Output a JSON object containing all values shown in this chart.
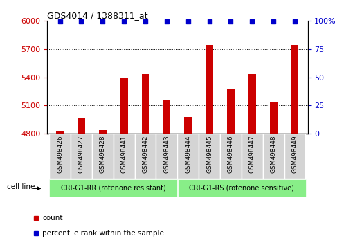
{
  "title": "GDS4014 / 1388311_at",
  "samples": [
    "GSM498426",
    "GSM498427",
    "GSM498428",
    "GSM498441",
    "GSM498442",
    "GSM498443",
    "GSM498444",
    "GSM498445",
    "GSM498446",
    "GSM498447",
    "GSM498448",
    "GSM498449"
  ],
  "counts": [
    4830,
    4970,
    4840,
    5400,
    5430,
    5160,
    4975,
    5740,
    5280,
    5430,
    5130,
    5740
  ],
  "percentile_ranks": [
    100,
    100,
    100,
    100,
    100,
    100,
    100,
    100,
    100,
    100,
    100,
    100
  ],
  "bar_color": "#cc0000",
  "dot_color": "#0000cc",
  "ylim_left": [
    4800,
    6000
  ],
  "ylim_right": [
    0,
    100
  ],
  "yticks_left": [
    4800,
    5100,
    5400,
    5700,
    6000
  ],
  "yticks_right": [
    0,
    25,
    50,
    75,
    100
  ],
  "group1_label": "CRI-G1-RR (rotenone resistant)",
  "group2_label": "CRI-G1-RS (rotenone sensitive)",
  "group1_count": 6,
  "group2_count": 6,
  "group_bg_color": "#88ee88",
  "sample_bg_color": "#d4d4d4",
  "cell_line_label": "cell line",
  "legend_count_label": "count",
  "legend_pct_label": "percentile rank within the sample",
  "bar_width": 0.35,
  "fig_width": 5.23,
  "fig_height": 3.54
}
